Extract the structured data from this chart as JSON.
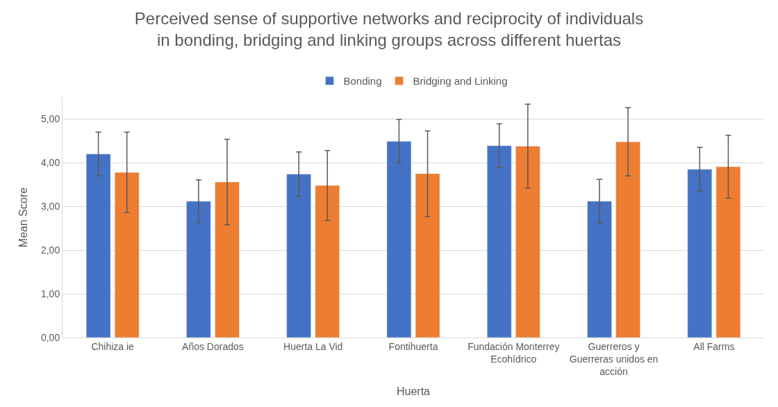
{
  "chart_data": {
    "type": "bar",
    "title": "Perceived sense of supportive networks and reciprocity of individuals in bonding, bridging and linking groups across different huertas",
    "xlabel": "Huerta",
    "ylabel": "Mean Score",
    "categories": [
      "Chihiza ie",
      "Años Dorados",
      "Huerta La Vid",
      "Fontihuerta",
      "Fundación Monterrey Ecohídrico",
      "Guerreros y Guerreras unidos en acción",
      "All Farms"
    ],
    "series": [
      {
        "name": "Bonding",
        "color": "#4472c4",
        "values": [
          4.2,
          3.12,
          3.74,
          4.49,
          4.39,
          3.12,
          3.85
        ],
        "errors": [
          0.5,
          0.49,
          0.51,
          0.5,
          0.5,
          0.5,
          0.5
        ]
      },
      {
        "name": "Bridging and Linking",
        "color": "#ed7d31",
        "values": [
          3.78,
          3.56,
          3.48,
          3.75,
          4.38,
          4.48,
          3.91
        ],
        "errors": [
          0.92,
          0.98,
          0.8,
          0.98,
          0.96,
          0.78,
          0.72
        ]
      }
    ],
    "ylim": [
      0,
      5.5
    ],
    "yticks": [
      {
        "value": 0,
        "label": "0,00"
      },
      {
        "value": 1,
        "label": "1,00"
      },
      {
        "value": 2,
        "label": "2,00"
      },
      {
        "value": 3,
        "label": "3,00"
      },
      {
        "value": 4,
        "label": "4,00"
      },
      {
        "value": 5,
        "label": "5,00"
      }
    ],
    "grid": "y",
    "legend": "top"
  }
}
